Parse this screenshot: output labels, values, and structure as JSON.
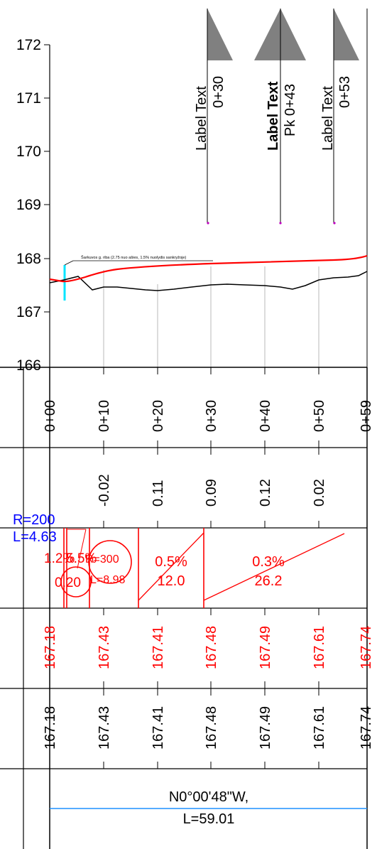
{
  "elevation_axis": {
    "labels": [
      "172",
      "171",
      "170",
      "169",
      "168",
      "167",
      "166"
    ]
  },
  "markers": [
    {
      "label": "Label Text",
      "station": "0+30",
      "bold": false
    },
    {
      "label": "Label Text",
      "station": "Pk 0+43",
      "bold": true
    },
    {
      "label": "Label Text",
      "station": "0+53",
      "bold": false
    }
  ],
  "profile_note": "Šarkuvos g. riba (2.75 nuo ašies, 1.5% nuolydis sankryžoje)",
  "stations": [
    "0+00",
    "0+10",
    "0+20",
    "0+30",
    "0+40",
    "0+50",
    "0+59"
  ],
  "differences": [
    "-0.02",
    "0.11",
    "0.09",
    "0.12",
    "0.02"
  ],
  "curve_info": {
    "radius": "R=200",
    "length": "L=4.63"
  },
  "grades": {
    "segment_a_grade": "1.2%",
    "segment_a_length": "0.20",
    "segment_b_grade": "5.5%",
    "vertical_curve_r": "R=300",
    "vertical_curve_l": "L=8.98",
    "segment_c_grade": "0.5%",
    "segment_c_length": "12.0",
    "segment_d_grade": "0.3%",
    "segment_d_length": "26.2"
  },
  "design_elevations": [
    "167.18",
    "167.43",
    "167.41",
    "167.48",
    "167.49",
    "167.61",
    "167.74"
  ],
  "existing_elevations": [
    "167.18",
    "167.43",
    "167.41",
    "167.48",
    "167.49",
    "167.61",
    "167.74"
  ],
  "alignment": {
    "bearing": "N0°00'48\"W,",
    "length": "L=59.01"
  },
  "colors": {
    "design_line": "#ff0000",
    "existing_line": "#000000",
    "grade_text": "#ff0000",
    "curve_text": "#0000ff",
    "alignment_line": "#1e90ff",
    "note_line": "#00e5ff",
    "marker_triangle": "#808080",
    "grid": "#d0d0d0"
  }
}
